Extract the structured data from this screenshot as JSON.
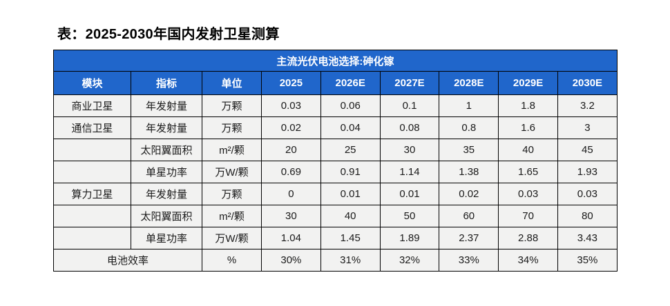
{
  "title": "表：2025-2030年国内发射卫星测算",
  "colors": {
    "page_bg": "#FFFFFF",
    "banner_bg": "#2066CB",
    "banner_text": "#FFFFFF",
    "header_bg": "#2066CB",
    "header_text": "#FFFFFF",
    "row_bg": "#F2F2F1",
    "border": "#000000",
    "body_text": "#1A1A1A",
    "title_text": "#000000"
  },
  "table": {
    "banner": "主流光伏电池选择:砷化镓",
    "columns": [
      "模块",
      "指标",
      "单位",
      "2025",
      "2026E",
      "2027E",
      "2028E",
      "2029E",
      "2030E"
    ],
    "rows": [
      {
        "module": "商业卫星",
        "indicator": "年发射量",
        "unit": "万颗",
        "values": [
          "0.03",
          "0.06",
          "0.1",
          "1",
          "1.8",
          "3.2"
        ]
      },
      {
        "module": "通信卫星",
        "indicator": "年发射量",
        "unit": "万颗",
        "values": [
          "0.02",
          "0.04",
          "0.08",
          "0.8",
          "1.6",
          "3"
        ]
      },
      {
        "module": "",
        "indicator": "太阳翼面积",
        "unit": "m²/颗",
        "values": [
          "20",
          "25",
          "30",
          "35",
          "40",
          "45"
        ]
      },
      {
        "module": "",
        "indicator": "单星功率",
        "unit": "万W/颗",
        "values": [
          "0.69",
          "0.91",
          "1.14",
          "1.38",
          "1.65",
          "1.93"
        ]
      },
      {
        "module": "算力卫星",
        "indicator": "年发射量",
        "unit": "万颗",
        "values": [
          "0",
          "0.01",
          "0.01",
          "0.02",
          "0.03",
          "0.03"
        ]
      },
      {
        "module": "",
        "indicator": "太阳翼面积",
        "unit": "m²/颗",
        "values": [
          "30",
          "40",
          "50",
          "60",
          "70",
          "80"
        ]
      },
      {
        "module": "",
        "indicator": "单星功率",
        "unit": "万W/颗",
        "values": [
          "1.04",
          "1.45",
          "1.89",
          "2.37",
          "2.88",
          "3.43"
        ]
      }
    ],
    "footer": {
      "label": "电池效率",
      "unit": "%",
      "values": [
        "30%",
        "31%",
        "32%",
        "33%",
        "34%",
        "35%"
      ]
    }
  },
  "chart_data": {
    "type": "table",
    "title": "表：2025-2030年国内发射卫星测算",
    "header_banner": "主流光伏电池选择:砷化镓",
    "columns": [
      "模块",
      "指标",
      "单位",
      "2025",
      "2026E",
      "2027E",
      "2028E",
      "2029E",
      "2030E"
    ],
    "rows": [
      [
        "商业卫星",
        "年发射量",
        "万颗",
        "0.03",
        "0.06",
        "0.1",
        "1",
        "1.8",
        "3.2"
      ],
      [
        "通信卫星",
        "年发射量",
        "万颗",
        "0.02",
        "0.04",
        "0.08",
        "0.8",
        "1.6",
        "3"
      ],
      [
        "",
        "太阳翼面积",
        "m²/颗",
        "20",
        "25",
        "30",
        "35",
        "40",
        "45"
      ],
      [
        "",
        "单星功率",
        "万W/颗",
        "0.69",
        "0.91",
        "1.14",
        "1.38",
        "1.65",
        "1.93"
      ],
      [
        "算力卫星",
        "年发射量",
        "万颗",
        "0",
        "0.01",
        "0.01",
        "0.02",
        "0.03",
        "0.03"
      ],
      [
        "",
        "太阳翼面积",
        "m²/颗",
        "30",
        "40",
        "50",
        "60",
        "70",
        "80"
      ],
      [
        "",
        "单星功率",
        "万W/颗",
        "1.04",
        "1.45",
        "1.89",
        "2.37",
        "2.88",
        "3.43"
      ],
      [
        "电池效率",
        "",
        "%",
        "30%",
        "31%",
        "32%",
        "33%",
        "34%",
        "35%"
      ]
    ],
    "notes": "最后一行 电池效率 标签横跨 模块+指标 两列；表头横幅横跨全部9列"
  }
}
